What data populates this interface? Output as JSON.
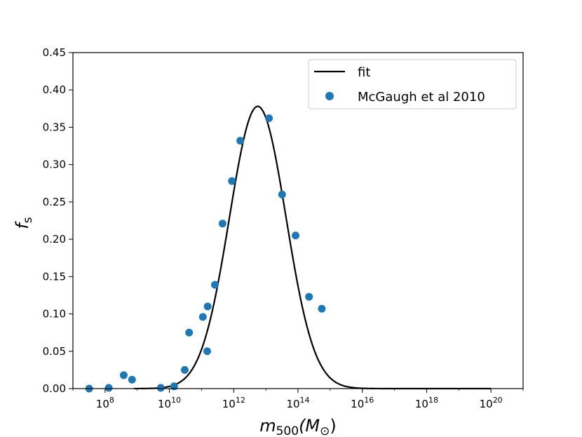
{
  "chart_data": {
    "type": "scatter",
    "xscale": "log",
    "xlim": [
      10000000.0,
      1e+21
    ],
    "ylim": [
      0,
      0.45
    ],
    "xlabel": {
      "base": "m",
      "subscript": "500",
      "unit_open": "(M",
      "unit_sub": "⊙",
      "unit_close": ")"
    },
    "ylabel": {
      "base": "f",
      "subscript": "s"
    },
    "xticks": [
      {
        "value": 100000000.0,
        "base": "10",
        "exp": "8"
      },
      {
        "value": 10000000000.0,
        "base": "10",
        "exp": "10"
      },
      {
        "value": 1000000000000.0,
        "base": "10",
        "exp": "12"
      },
      {
        "value": 100000000000000.0,
        "base": "10",
        "exp": "14"
      },
      {
        "value": 1e+16,
        "base": "10",
        "exp": "16"
      },
      {
        "value": 1e+18,
        "base": "10",
        "exp": "18"
      },
      {
        "value": 1e+20,
        "base": "10",
        "exp": "20"
      }
    ],
    "yticks": [
      "0.00",
      "0.05",
      "0.10",
      "0.15",
      "0.20",
      "0.25",
      "0.30",
      "0.35",
      "0.40",
      "0.45"
    ],
    "legend": {
      "placement": "top-right"
    },
    "series": [
      {
        "name": "fit",
        "kind": "line",
        "color": "#000000",
        "peak_x": 5600000000000.0,
        "peak_y": 0.378,
        "width_dex": 0.88,
        "x_start": 800000000.0,
        "x_end": 1e+20
      },
      {
        "name": "McGaugh et al 2010",
        "kind": "scatter",
        "color": "#1f77b4",
        "points": [
          {
            "x": 32000000.0,
            "y": 0.0
          },
          {
            "x": 130000000.0,
            "y": 0.001
          },
          {
            "x": 380000000.0,
            "y": 0.018
          },
          {
            "x": 690000000.0,
            "y": 0.012
          },
          {
            "x": 5400000000.0,
            "y": 0.001
          },
          {
            "x": 14000000000.0,
            "y": 0.003
          },
          {
            "x": 30000000000.0,
            "y": 0.025
          },
          {
            "x": 41000000000.0,
            "y": 0.075
          },
          {
            "x": 110000000000.0,
            "y": 0.096
          },
          {
            "x": 150000000000.0,
            "y": 0.05
          },
          {
            "x": 155000000000.0,
            "y": 0.11
          },
          {
            "x": 260000000000.0,
            "y": 0.139
          },
          {
            "x": 450000000000.0,
            "y": 0.221
          },
          {
            "x": 880000000000.0,
            "y": 0.278
          },
          {
            "x": 1600000000000.0,
            "y": 0.332
          },
          {
            "x": 12500000000000.0,
            "y": 0.362
          },
          {
            "x": 32000000000000.0,
            "y": 0.26
          },
          {
            "x": 84000000000000.0,
            "y": 0.205
          },
          {
            "x": 220000000000000.0,
            "y": 0.123
          },
          {
            "x": 550000000000000.0,
            "y": 0.107
          }
        ]
      }
    ]
  }
}
